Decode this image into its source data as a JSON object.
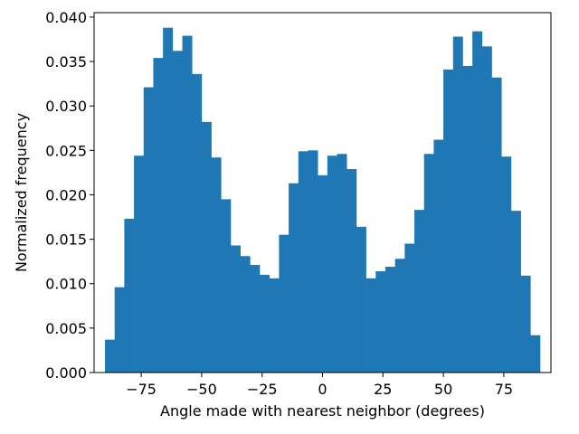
{
  "chart_data": {
    "type": "bar",
    "title": "",
    "xlabel": "Angle made with nearest neighbor (degrees)",
    "ylabel": "Normalized frequency",
    "xlim": [
      -94.5,
      94.5
    ],
    "ylim": [
      0,
      0.0405
    ],
    "bin_width": 4,
    "bin_start": -90,
    "values": [
      0.0037,
      0.0096,
      0.0173,
      0.0244,
      0.0321,
      0.0354,
      0.0388,
      0.0362,
      0.0379,
      0.0336,
      0.0282,
      0.0242,
      0.0195,
      0.0143,
      0.0131,
      0.0121,
      0.011,
      0.0106,
      0.0155,
      0.0213,
      0.0249,
      0.025,
      0.0222,
      0.0244,
      0.0246,
      0.0229,
      0.0164,
      0.0106,
      0.0114,
      0.0119,
      0.0128,
      0.0145,
      0.0183,
      0.0246,
      0.0262,
      0.0341,
      0.0378,
      0.0345,
      0.0384,
      0.0367,
      0.0332,
      0.0243,
      0.0182,
      0.0109,
      0.0042
    ],
    "x_ticks": [
      -75,
      -50,
      -25,
      0,
      25,
      50,
      75
    ],
    "x_tick_labels": [
      "−75",
      "−50",
      "−25",
      "0",
      "25",
      "50",
      "75"
    ],
    "y_ticks": [
      0.0,
      0.005,
      0.01,
      0.015,
      0.02,
      0.025,
      0.03,
      0.035,
      0.04
    ],
    "y_tick_labels": [
      "0.000",
      "0.005",
      "0.010",
      "0.015",
      "0.020",
      "0.025",
      "0.030",
      "0.035",
      "0.040"
    ],
    "bar_color": "#1f77b4",
    "grid": false,
    "legend": "none"
  }
}
